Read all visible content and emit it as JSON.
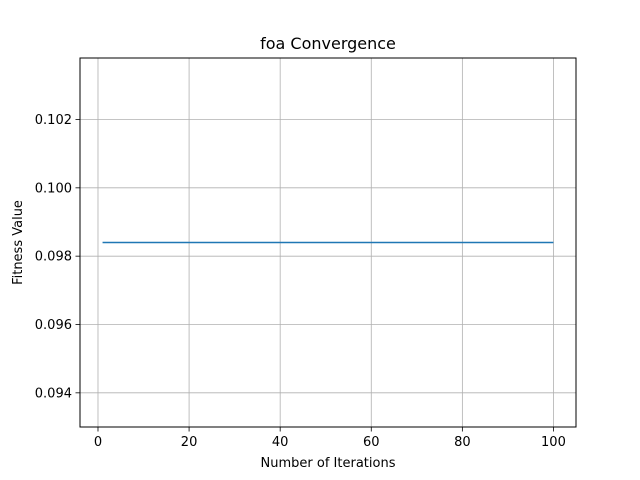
{
  "chart_data": {
    "type": "line",
    "title": "foa Convergence",
    "xlabel": "Number of Iterations",
    "ylabel": "Fitness Value",
    "xlim": [
      -3.95,
      104.95
    ],
    "ylim": [
      0.093,
      0.1038
    ],
    "grid": true,
    "xticks": [
      0,
      20,
      40,
      60,
      80,
      100
    ],
    "xtick_labels": [
      "0",
      "20",
      "40",
      "60",
      "80",
      "100"
    ],
    "yticks": [
      0.094,
      0.096,
      0.098,
      0.1,
      0.102
    ],
    "ytick_labels": [
      "0.094",
      "0.096",
      "0.098",
      "0.100",
      "0.102"
    ],
    "series": [
      {
        "color": "#1f77b4",
        "x": [
          1,
          100
        ],
        "y": [
          0.0984,
          0.0984
        ]
      }
    ]
  }
}
